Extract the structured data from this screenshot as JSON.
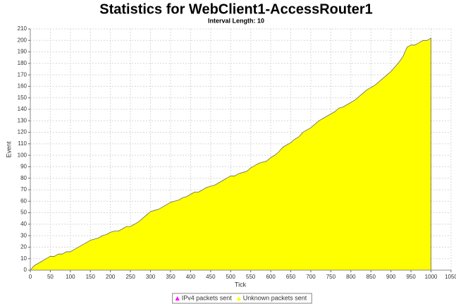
{
  "chart_data": {
    "type": "area",
    "title": "Statistics for WebClient1-AccessRouter1",
    "subtitle": "Interval Length: 10",
    "x_label": "Tick",
    "y_label": "Event",
    "x": [
      0,
      10,
      20,
      30,
      40,
      50,
      60,
      70,
      80,
      90,
      100,
      110,
      120,
      130,
      140,
      150,
      160,
      170,
      180,
      190,
      200,
      210,
      220,
      230,
      240,
      250,
      260,
      270,
      280,
      290,
      300,
      310,
      320,
      330,
      340,
      350,
      360,
      370,
      380,
      390,
      400,
      410,
      420,
      430,
      440,
      450,
      460,
      470,
      480,
      490,
      500,
      510,
      520,
      530,
      540,
      550,
      560,
      570,
      580,
      590,
      600,
      610,
      620,
      630,
      640,
      650,
      660,
      670,
      680,
      690,
      700,
      710,
      720,
      730,
      740,
      750,
      760,
      770,
      780,
      790,
      800,
      810,
      820,
      830,
      840,
      850,
      860,
      870,
      880,
      890,
      900,
      910,
      920,
      930,
      940,
      950,
      960,
      970,
      980,
      990,
      1000
    ],
    "series": [
      {
        "name": "IPv4 packets sent",
        "color": "#ff00ff"
      },
      {
        "name": "Unknown packets sent",
        "color": "#ffff00",
        "values": [
          0,
          4,
          6,
          8,
          10,
          12,
          12,
          14,
          14,
          16,
          16,
          18,
          20,
          22,
          24,
          26,
          27,
          28,
          30,
          31,
          33,
          34,
          34,
          36,
          38,
          38,
          40,
          42,
          45,
          48,
          51,
          52,
          53,
          55,
          57,
          59,
          60,
          61,
          63,
          64,
          66,
          68,
          68,
          70,
          72,
          73,
          74,
          76,
          78,
          80,
          82,
          82,
          84,
          85,
          86,
          89,
          91,
          93,
          94,
          95,
          98,
          100,
          103,
          107,
          109,
          111,
          114,
          116,
          120,
          122,
          124,
          127,
          130,
          132,
          134,
          136,
          138,
          141,
          142,
          144,
          146,
          148,
          151,
          154,
          157,
          159,
          161,
          164,
          167,
          170,
          173,
          177,
          181,
          186,
          194,
          196,
          196,
          198,
          200,
          200,
          202
        ]
      }
    ],
    "xlim": [
      0,
      1050
    ],
    "xticks": [
      0,
      50,
      100,
      150,
      200,
      250,
      300,
      350,
      400,
      450,
      500,
      550,
      600,
      650,
      700,
      750,
      800,
      850,
      900,
      950,
      1000,
      1050
    ],
    "ylim": [
      0,
      210
    ],
    "yticks": [
      0,
      10,
      20,
      30,
      40,
      50,
      60,
      70,
      80,
      90,
      100,
      110,
      120,
      130,
      140,
      150,
      160,
      170,
      180,
      190,
      200,
      210
    ],
    "grid": true,
    "legend": "bottom"
  }
}
